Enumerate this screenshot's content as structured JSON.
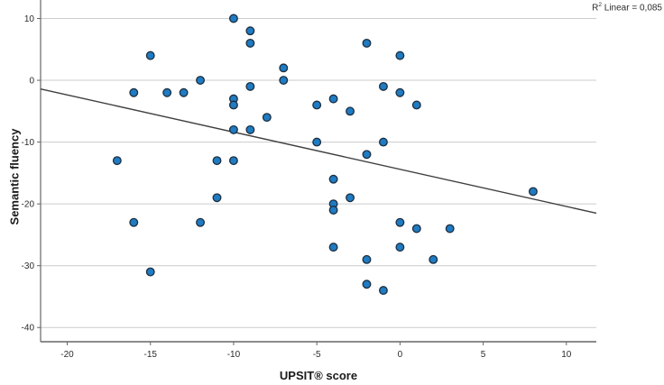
{
  "chart_data": {
    "type": "scatter",
    "title": "",
    "xlabel": "UPSIT® score",
    "ylabel": "Semantic fluency",
    "annotation": {
      "base": "R",
      "exp": "2",
      "rest": " Linear = 0,085"
    },
    "xlim": [
      -21.6,
      11.8
    ],
    "ylim": [
      -42.3,
      12.7
    ],
    "x_ticks": [
      -20,
      -15,
      -10,
      -5,
      0,
      5,
      10
    ],
    "y_ticks": [
      10,
      0,
      -10,
      -20,
      -30,
      -40
    ],
    "grid": "horizontal-only",
    "legend": "none",
    "colors": {
      "marker_fill": "#1f7bc2",
      "marker_edge": "#1c2e3f",
      "gridline": "#cccccc",
      "axis": "#666666",
      "regression_line": "#3f3f3f",
      "tick_text": "#2b2b2b"
    },
    "regression_line": {
      "x1": -21.6,
      "y1": -1.4,
      "x2": 11.8,
      "y2": -21.5
    },
    "points": [
      [
        -17,
        -13
      ],
      [
        -16,
        -2
      ],
      [
        -16,
        -23
      ],
      [
        -15,
        4
      ],
      [
        -15,
        -31
      ],
      [
        -14,
        -2
      ],
      [
        -13,
        -2
      ],
      [
        -12,
        0
      ],
      [
        -12,
        -23
      ],
      [
        -11,
        -13
      ],
      [
        -11,
        -19
      ],
      [
        -10,
        10
      ],
      [
        -10,
        -3
      ],
      [
        -10,
        -4
      ],
      [
        -10,
        -8
      ],
      [
        -10,
        -13
      ],
      [
        -9,
        8
      ],
      [
        -9,
        6
      ],
      [
        -9,
        -1
      ],
      [
        -9,
        -8
      ],
      [
        -8,
        -6
      ],
      [
        -7,
        2
      ],
      [
        -7,
        0
      ],
      [
        -5,
        -4
      ],
      [
        -5,
        -10
      ],
      [
        -4,
        -3
      ],
      [
        -4,
        -16
      ],
      [
        -4,
        -20
      ],
      [
        -4,
        -21
      ],
      [
        -4,
        -27
      ],
      [
        -3,
        -5
      ],
      [
        -3,
        -19
      ],
      [
        -2,
        6
      ],
      [
        -2,
        -12
      ],
      [
        -2,
        -29
      ],
      [
        -2,
        -33
      ],
      [
        -1,
        -1
      ],
      [
        -1,
        -10
      ],
      [
        -1,
        -34
      ],
      [
        0,
        4
      ],
      [
        0,
        -2
      ],
      [
        0,
        -23
      ],
      [
        0,
        -27
      ],
      [
        1,
        -4
      ],
      [
        1,
        -24
      ],
      [
        2,
        -29
      ],
      [
        3,
        -24
      ],
      [
        8,
        -18
      ]
    ]
  }
}
